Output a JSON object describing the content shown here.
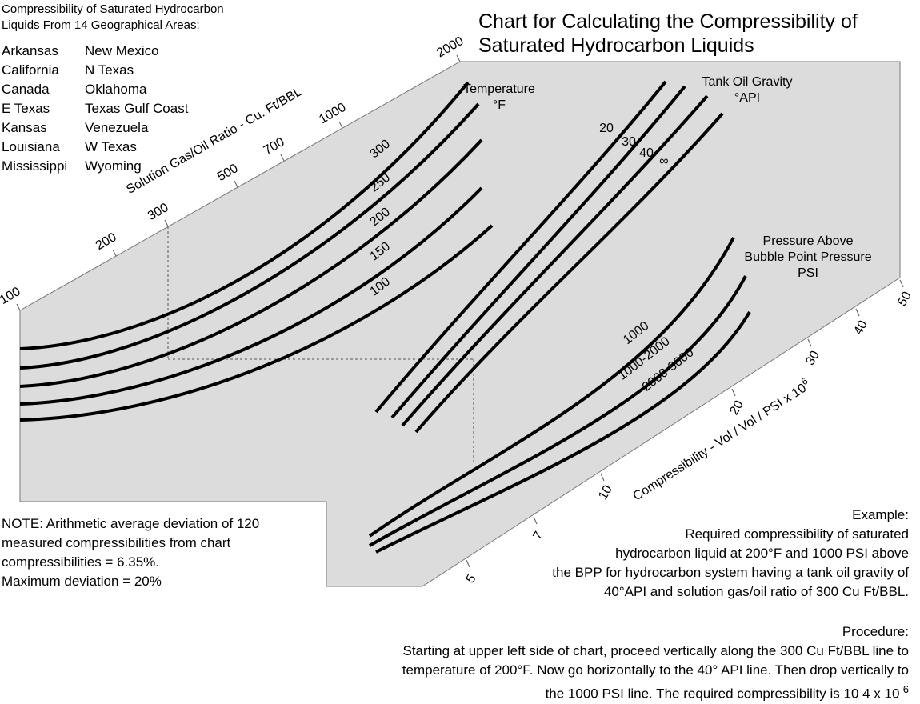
{
  "title": [
    "Chart for Calculating the Compressibility of",
    "Saturated Hydrocarbon Liquids"
  ],
  "areas_heading": [
    "Compressibility of Saturated Hydrocarbon",
    "Liquids From 14 Geographical Areas:"
  ],
  "areas_col1": [
    "Arkansas",
    "California",
    "Canada",
    "E Texas",
    "Kansas",
    "Louisiana",
    "Mississippi"
  ],
  "areas_col2": [
    "New Mexico",
    "N Texas",
    "Oklahoma",
    "Texas Gulf Coast",
    "Venezuela",
    "W Texas",
    "Wyoming"
  ],
  "note": [
    "NOTE:  Arithmetic average deviation of 120",
    "measured compressibilities from chart",
    "compressibilities = 6.35%.",
    "Maximum deviation = 20%"
  ],
  "example": [
    "Example:",
    "Required compressibility of saturated",
    "hydrocarbon liquid at 200°F and 1000 PSI above",
    "the BPP for hydrocarbon system having a tank oil gravity of",
    "40°API and solution gas/oil ratio of 300 Cu Ft/BBL."
  ],
  "procedure": [
    "Procedure:",
    "Starting at upper left side of chart, proceed vertically along the 300 Cu Ft/BBL line to",
    "temperature of 200°F.   Now go horizontally to the 40° API line.  Then drop vertically to"
  ],
  "procedure_last": "the 1000 PSI line.  The required compressibility  is 10  4  x  10",
  "procedure_exp": "-6",
  "colors": {
    "panel": "#dcdcdc",
    "curve": "#000000"
  },
  "chart_data": {
    "type": "line",
    "subtype": "nomograph",
    "gor_axis": {
      "label": "Solution Gas/Oil Ratio - Cu. Ft/BBL",
      "ticks": [
        "100",
        "200",
        "300",
        "500",
        "700",
        "1000",
        "2000"
      ]
    },
    "temperature": {
      "label": [
        "Temperature",
        "°F"
      ],
      "curves": [
        "300",
        "250",
        "200",
        "150",
        "100"
      ]
    },
    "api": {
      "label": [
        "Tank Oil Gravity",
        "°API"
      ],
      "curves": [
        "20",
        "30",
        "40",
        "∞"
      ]
    },
    "pressure": {
      "label": [
        "Pressure Above",
        "Bubble Point Pressure",
        "PSI"
      ],
      "curves": [
        "1000",
        "1000-2000",
        "2000-3000"
      ]
    },
    "compressibility_axis": {
      "label": "Compressibility - Vol / Vol / PSI x 10",
      "label_exp": "6",
      "ticks": [
        "5",
        "7",
        "10",
        "20",
        "30",
        "40",
        "50"
      ]
    },
    "example_path": {
      "gor": 300,
      "temperature_f": 200,
      "api": 40,
      "pressure_psi": "1000",
      "result": "10 4 x 10-6"
    }
  }
}
